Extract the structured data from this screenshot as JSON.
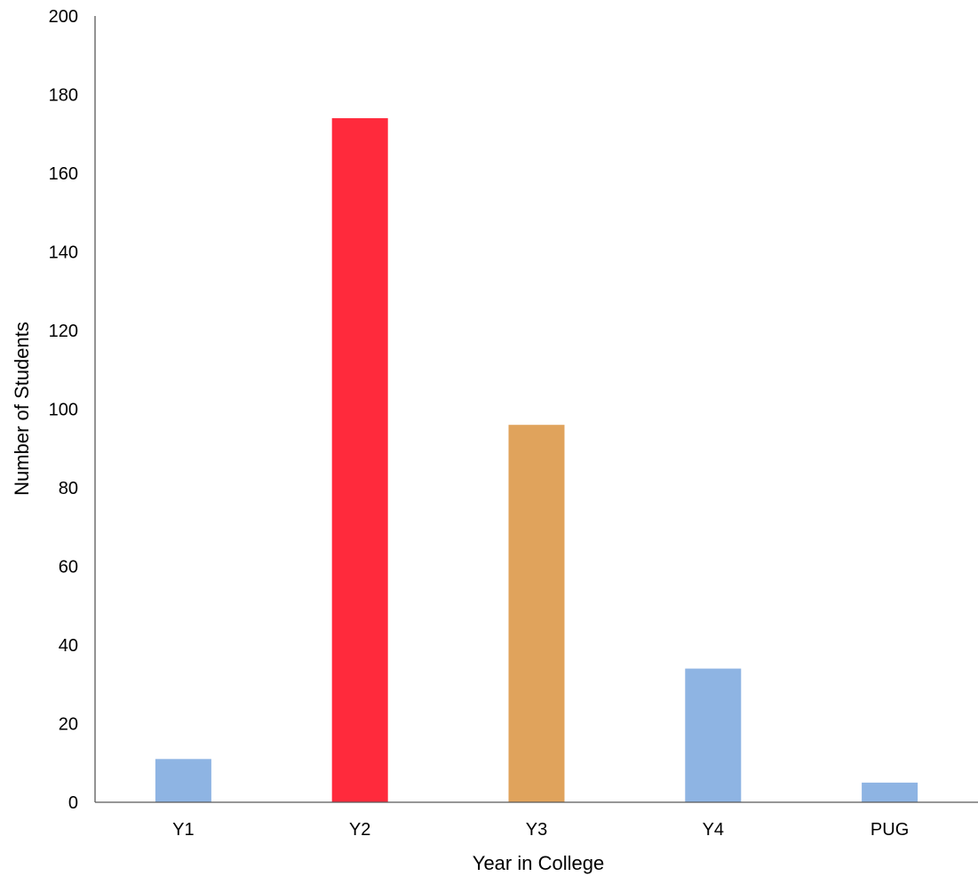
{
  "chart_data": {
    "type": "bar",
    "categories": [
      "Y1",
      "Y2",
      "Y3",
      "Y4",
      "PUG"
    ],
    "values": [
      11,
      174,
      96,
      34,
      5
    ],
    "colors": [
      "#8EB4E3",
      "#FF2A3C",
      "#E0A35C",
      "#8EB4E3",
      "#8EB4E3"
    ],
    "title": "",
    "xlabel": "Year in College",
    "ylabel": "Number of Students",
    "ylim": [
      0,
      200
    ],
    "yticks": [
      0,
      20,
      40,
      60,
      80,
      100,
      120,
      140,
      160,
      180,
      200
    ],
    "ytick_labels": [
      "0",
      "20",
      "40",
      "60",
      "80",
      "100",
      "120",
      "140",
      "160",
      "180",
      "200"
    ],
    "grid": false,
    "legend": "none"
  }
}
